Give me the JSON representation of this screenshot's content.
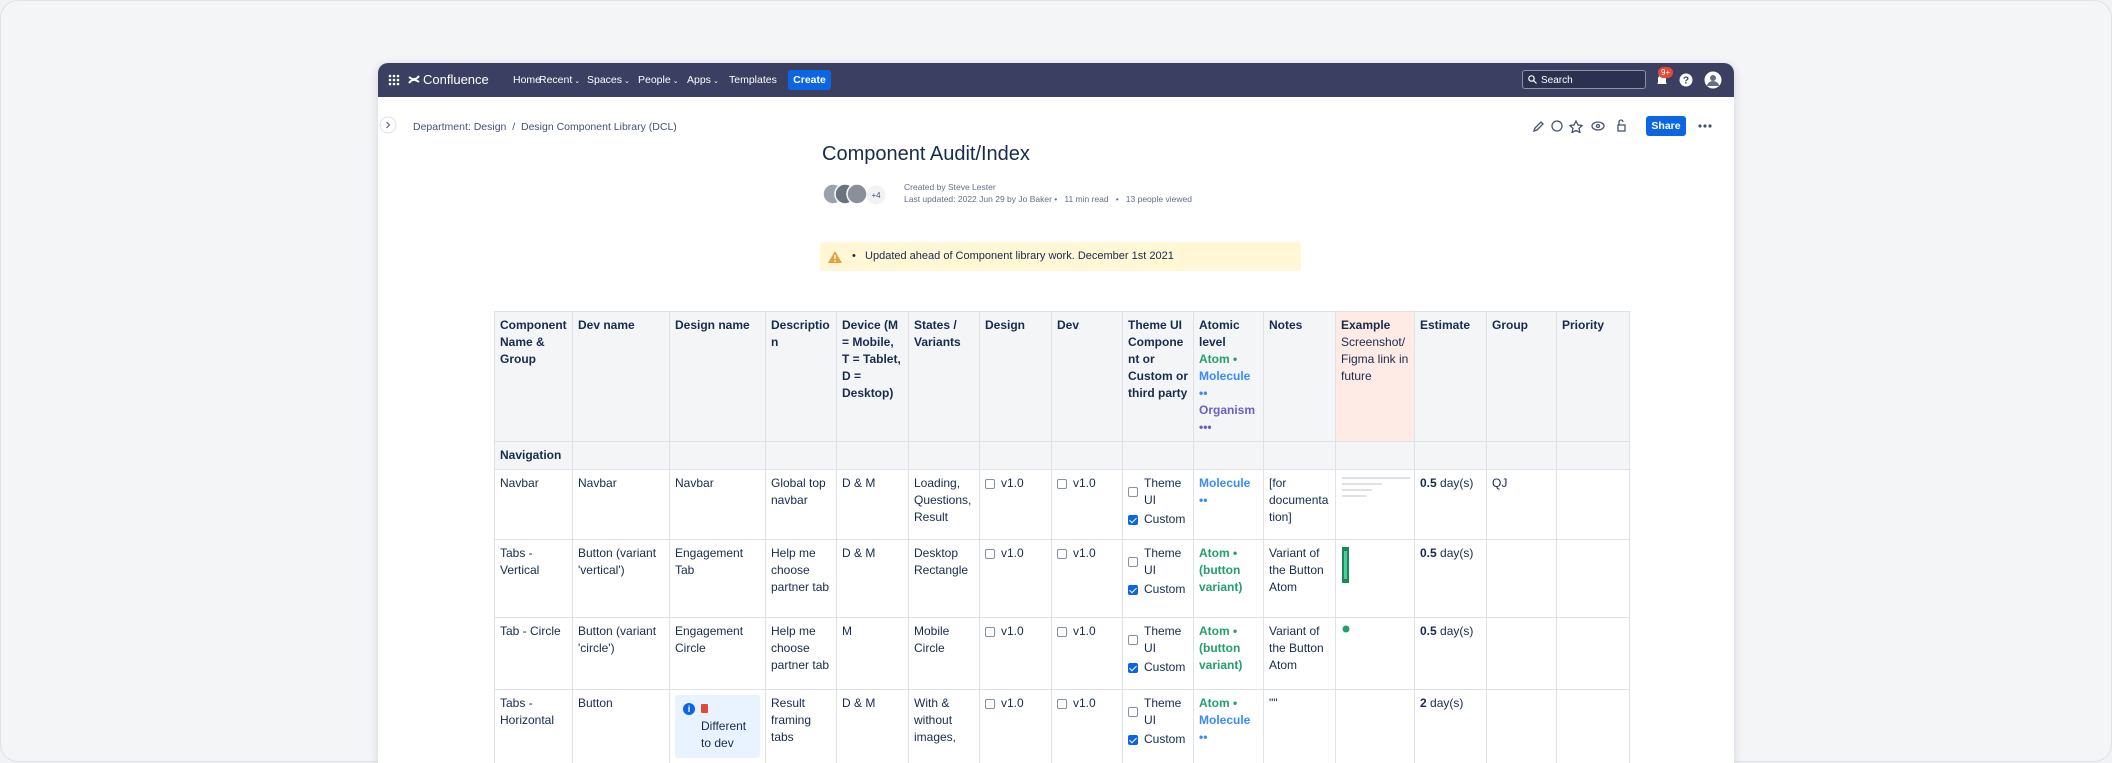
{
  "nav": {
    "product": "Confluence",
    "items": [
      "Home",
      "Recent",
      "Spaces",
      "People",
      "Apps",
      "Templates"
    ],
    "create": "Create",
    "search": "Search",
    "badge": "9+"
  },
  "breadcrumb": [
    "Department: Design",
    "Design Component Library (DCL)"
  ],
  "actions": {
    "share": "Share"
  },
  "page": {
    "title": "Component Audit/Index",
    "more_contributors": "+4",
    "created": "Created by Steve Lester",
    "updated": "Last updated: 2022 Jun 29 by Jo Baker",
    "read": "11 min read",
    "viewed": "13 people viewed",
    "note": "Updated ahead of Component library work. December 1st 2021"
  },
  "table": {
    "header": [
      [
        {
          "text": "Component Name & Group",
          "weight": "bold"
        }
      ],
      [
        {
          "text": "Dev name",
          "weight": "bold"
        }
      ],
      [
        {
          "text": "Design name",
          "weight": "bold"
        }
      ],
      [
        {
          "text": "Description",
          "weight": "bold"
        }
      ],
      [
        {
          "text": "Device (M = Mobile, T = Tablet, D = Desktop)",
          "weight": "bold"
        }
      ],
      [
        {
          "text": "States / Variants",
          "weight": "bold"
        }
      ],
      [
        {
          "text": "Design",
          "weight": "bold"
        }
      ],
      [
        {
          "text": "Dev",
          "weight": "bold"
        }
      ],
      [
        {
          "text": "Theme UI Component or Custom or third party",
          "weight": "bold"
        }
      ],
      [
        {
          "text": "Atomic level",
          "weight": "bold"
        },
        {
          "text": "Atom •",
          "weight": "bold",
          "color": "#22a06b"
        },
        {
          "text": "Molecule ••",
          "weight": "bold",
          "color": "#388bff"
        },
        {
          "text": "Organism •••",
          "weight": "bold",
          "color": "#6e5dc6"
        }
      ],
      [
        {
          "text": "Notes",
          "weight": "bold"
        }
      ],
      [
        {
          "text": "Example",
          "weight": "bold"
        },
        {
          "text": "Screenshot/Figma link in future"
        }
      ],
      [
        {
          "text": "Estimate",
          "weight": "bold"
        }
      ],
      [
        {
          "text": "Group",
          "weight": "bold"
        }
      ],
      [
        {
          "text": "Priority",
          "weight": "bold"
        }
      ]
    ],
    "rows": [
      [
        [
          {
            "text": "Navigation",
            "weight": "bold"
          }
        ],
        [],
        [],
        [],
        [],
        [],
        [],
        [],
        [],
        [],
        [],
        [],
        [],
        [],
        []
      ],
      [
        [
          {
            "text": "Navbar"
          }
        ],
        [
          {
            "text": "Navbar"
          }
        ],
        [
          {
            "text": "Navbar"
          }
        ],
        [
          {
            "text": "Global top navbar"
          }
        ],
        [
          {
            "text": "D & M"
          }
        ],
        [
          {
            "text": "Loading, Questions, Result"
          }
        ],
        [
          {
            "checked": false,
            "label": "v1.0"
          }
        ],
        [
          {
            "checked": false,
            "label": "v1.0"
          }
        ],
        [
          {
            "checked": false,
            "label": "Theme UI"
          },
          {
            "checked": true,
            "label": "Custom"
          }
        ],
        [
          {
            "text": "Molecule ••",
            "weight": "bold",
            "color": "#388bff"
          }
        ],
        [
          {
            "text": "[for documentation]"
          }
        ],
        [],
        [
          {
            "amount": "0.5",
            "unit": "day(s)"
          }
        ],
        [
          {
            "text": "QJ"
          }
        ],
        []
      ],
      [
        [
          {
            "text": "Tabs - Vertical"
          }
        ],
        [
          {
            "text": "Button (variant 'vertical')"
          }
        ],
        [
          {
            "text": "Engagement Tab"
          }
        ],
        [
          {
            "text": "Help me choose partner tab"
          }
        ],
        [
          {
            "text": "D & M"
          }
        ],
        [
          {
            "text": "Desktop Rectangle"
          }
        ],
        [
          {
            "checked": false,
            "label": "v1.0"
          }
        ],
        [
          {
            "checked": false,
            "label": "v1.0"
          }
        ],
        [
          {
            "checked": false,
            "label": "Theme UI"
          },
          {
            "checked": true,
            "label": "Custom"
          }
        ],
        [
          {
            "text": "Atom • (button variant)",
            "weight": "bold",
            "color": "#22a06b"
          }
        ],
        [
          {
            "text": "Variant of the Button Atom"
          }
        ],
        [],
        [
          {
            "amount": "0.5",
            "unit": "day(s)"
          }
        ],
        [],
        []
      ],
      [
        [
          {
            "text": "Tab - Circle"
          }
        ],
        [
          {
            "text": "Button (variant 'circle')"
          }
        ],
        [
          {
            "text": "Engagement Circle"
          }
        ],
        [
          {
            "text": "Help me choose partner tab"
          }
        ],
        [
          {
            "text": "M"
          }
        ],
        [
          {
            "text": "Mobile Circle"
          }
        ],
        [
          {
            "checked": false,
            "label": "v1.0"
          }
        ],
        [
          {
            "checked": false,
            "label": "v1.0"
          }
        ],
        [
          {
            "checked": false,
            "label": "Theme UI"
          },
          {
            "checked": true,
            "label": "Custom"
          }
        ],
        [
          {
            "text": "Atom • (button variant)",
            "weight": "bold",
            "color": "#22a06b"
          }
        ],
        [
          {
            "text": "Variant of the Button Atom"
          }
        ],
        [],
        [
          {
            "amount": "0.5",
            "unit": "day(s)"
          }
        ],
        [],
        []
      ],
      [
        [
          {
            "text": "Tabs - Horizontal"
          }
        ],
        [
          {
            "text": "Button"
          }
        ],
        [
          {
            "panel": "Different to dev"
          }
        ],
        [
          {
            "text": "Result framing tabs"
          }
        ],
        [
          {
            "text": "D & M"
          }
        ],
        [
          {
            "text": "With & without images,"
          }
        ],
        [
          {
            "checked": false,
            "label": "v1.0"
          }
        ],
        [
          {
            "checked": false,
            "label": "v1.0"
          }
        ],
        [
          {
            "checked": false,
            "label": "Theme UI"
          },
          {
            "checked": true,
            "label": "Custom"
          }
        ],
        [
          {
            "text": "Atom •",
            "weight": "bold",
            "color": "#22a06b"
          },
          {
            "text": "Molecule ••",
            "weight": "bold",
            "color": "#388bff"
          }
        ],
        [
          {
            "text": "\"\""
          }
        ],
        [],
        [
          {
            "amount": "2",
            "unit": "day(s)"
          }
        ],
        [],
        []
      ]
    ]
  }
}
